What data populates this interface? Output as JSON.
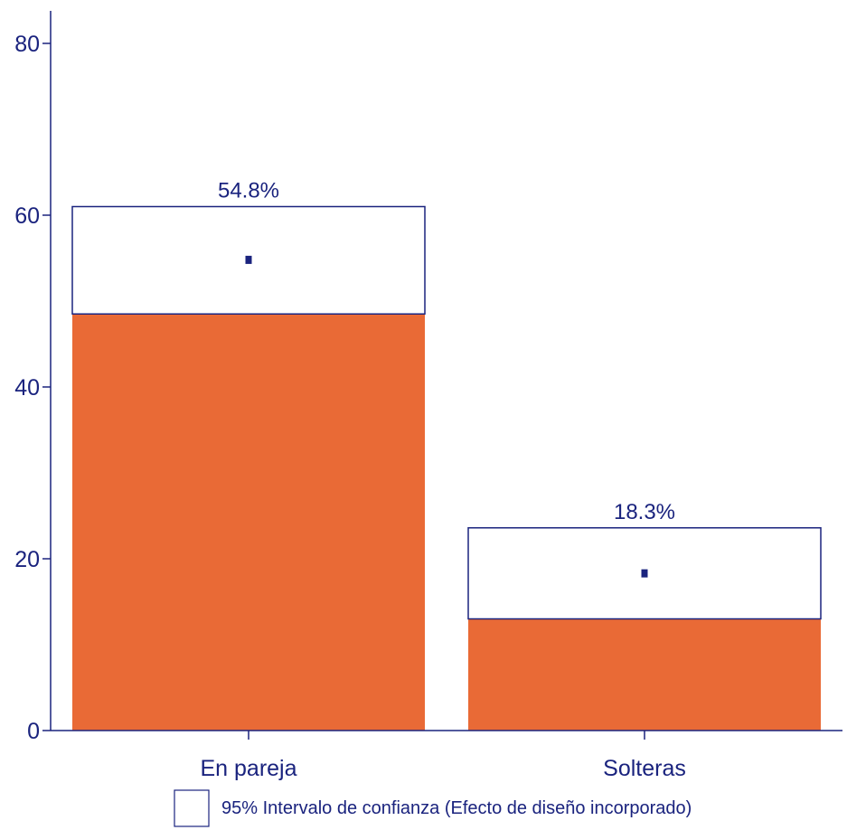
{
  "chart_data": {
    "type": "bar",
    "categories": [
      "En pareja",
      "Solteras"
    ],
    "values": [
      54.8,
      18.3
    ],
    "value_labels": [
      "54.8%",
      "18.3%"
    ],
    "ci_lower": [
      48.5,
      13.0
    ],
    "ci_upper": [
      61.0,
      23.6
    ],
    "ylim": [
      0,
      80
    ],
    "yticks": [
      0,
      20,
      40,
      60,
      80
    ],
    "title": "",
    "xlabel": "",
    "ylabel": "",
    "grid": false,
    "legend": {
      "position": "bottom-center",
      "label": "95% Intervalo de confianza (Efecto de diseño incorporado)"
    },
    "colors": {
      "bar": "#e96a36",
      "axis": "#1a237e",
      "ci_fill": "#ffffff",
      "point": "#1a237e"
    }
  }
}
